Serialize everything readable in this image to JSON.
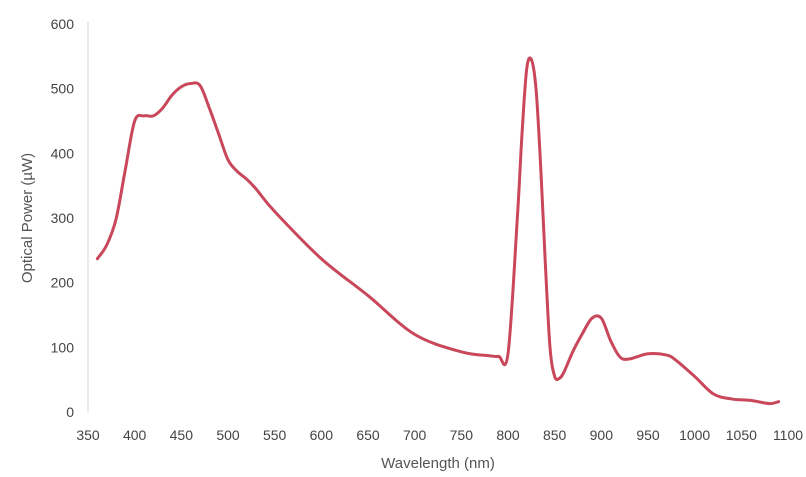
{
  "chart_data": {
    "type": "line",
    "title": "",
    "xlabel": "Wavelength (nm)",
    "ylabel": "Optical Power (µW)",
    "xlim": [
      350,
      1100
    ],
    "ylim": [
      0,
      600
    ],
    "xticks": [
      350,
      400,
      450,
      500,
      550,
      600,
      650,
      700,
      750,
      800,
      850,
      900,
      950,
      1000,
      1050,
      1100
    ],
    "yticks": [
      0,
      100,
      200,
      300,
      400,
      500,
      600
    ],
    "grid": false,
    "legend": "none",
    "series": [
      {
        "color": "#c9475a",
        "x": [
          360,
          370,
          380,
          390,
          400,
          410,
          420,
          430,
          440,
          450,
          460,
          470,
          480,
          490,
          500,
          510,
          520,
          530,
          550,
          600,
          650,
          700,
          750,
          780,
          790,
          800,
          810,
          815,
          820,
          825,
          830,
          835,
          840,
          845,
          850,
          855,
          860,
          870,
          880,
          890,
          900,
          910,
          920,
          930,
          950,
          970,
          980,
          1000,
          1020,
          1040,
          1060,
          1080,
          1090
        ],
        "y": [
          237,
          258,
          298,
          375,
          450,
          458,
          458,
          470,
          490,
          503,
          508,
          505,
          470,
          430,
          390,
          372,
          360,
          345,
          310,
          237,
          180,
          120,
          93,
          87,
          86,
          90,
          300,
          430,
          530,
          545,
          500,
          380,
          230,
          100,
          55,
          52,
          62,
          95,
          122,
          145,
          145,
          110,
          85,
          82,
          90,
          88,
          80,
          55,
          28,
          20,
          18,
          13,
          16
        ]
      }
    ]
  }
}
